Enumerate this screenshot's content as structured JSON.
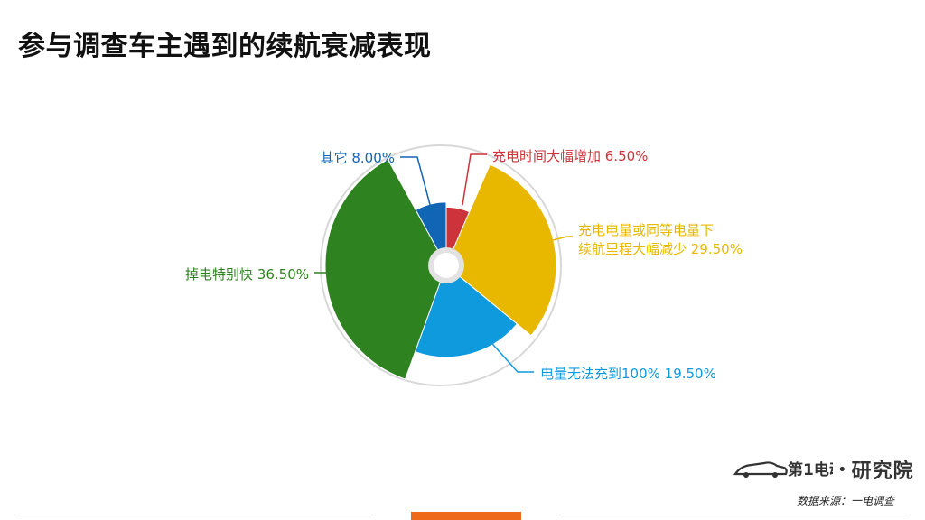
{
  "page": {
    "title": "参与调查车主遇到的续航衰减表现"
  },
  "chart_data": {
    "type": "pie",
    "variant": "nightingale-rose",
    "start_angle_deg": 0,
    "slices": [
      {
        "label": "充电时间大幅增加",
        "value": 6.5,
        "display": "6.50%",
        "color": "#cc333a"
      },
      {
        "label": "充电电量或同等电量下续航里程大幅减少",
        "label_lines": [
          "充电电量或同等电量下",
          "续航里程大幅减少"
        ],
        "value": 29.5,
        "display": "29.50%",
        "color": "#e8b800"
      },
      {
        "label": "电量无法充到100%",
        "value": 19.5,
        "display": "19.50%",
        "color": "#0f9ade"
      },
      {
        "label": "掉电特别快",
        "value": 36.5,
        "display": "36.50%",
        "color": "#2e8220"
      },
      {
        "label": "其它",
        "value": 8.0,
        "display": "8.00%",
        "color": "#1165b5"
      }
    ]
  },
  "brand": {
    "name": "第1电动",
    "org": "研究院",
    "separator": "•"
  },
  "source": "数据来源：一电调查",
  "colors": {
    "footer_accent": "#ee6a1a",
    "footer_line": "#d0d0d0",
    "outer_ring": "#d8d8d8"
  }
}
